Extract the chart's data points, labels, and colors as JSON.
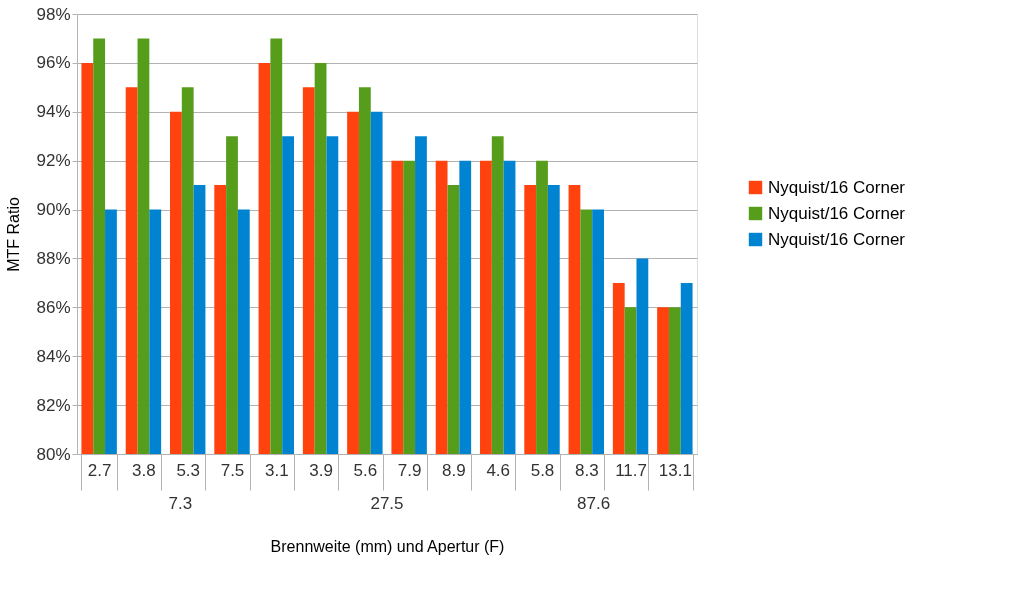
{
  "chart_data": {
    "type": "bar",
    "xlabel": "Brennweite (mm) und Apertur (F)",
    "ylabel": "MTF Ratio",
    "categories": [
      "2.7",
      "3.8",
      "5.3",
      "7.5",
      "3.1",
      "3.9",
      "5.6",
      "7.9",
      "8.9",
      "4.6",
      "5.8",
      "8.3",
      "11.7",
      "13.1"
    ],
    "series": [
      {
        "name": "Nyquist/16 Corner",
        "color": "#ff420e",
        "values": [
          96,
          95,
          94,
          91,
          96,
          95,
          94,
          92,
          92,
          92,
          91,
          91,
          87,
          86
        ]
      },
      {
        "name": "Nyquist/16 Corner",
        "color": "#579d1c",
        "values": [
          97,
          97,
          95,
          93,
          97,
          96,
          95,
          92,
          91,
          93,
          92,
          90,
          86,
          86
        ]
      },
      {
        "name": "Nyquist/16 Corner",
        "color": "#0084d1",
        "values": [
          90,
          90,
          91,
          90,
          93,
          93,
          94,
          93,
          92,
          92,
          91,
          90,
          88,
          87
        ]
      }
    ],
    "ylim": [
      80,
      98
    ],
    "yticks": [
      {
        "value": 80,
        "label": "80%"
      },
      {
        "value": 82,
        "label": "82%"
      },
      {
        "value": 84,
        "label": "84%"
      },
      {
        "value": 86,
        "label": "86%"
      },
      {
        "value": 88,
        "label": "88%"
      },
      {
        "value": 90,
        "label": "90%"
      },
      {
        "value": 92,
        "label": "92%"
      },
      {
        "value": 94,
        "label": "94%"
      },
      {
        "value": 96,
        "label": "96%"
      },
      {
        "value": 98,
        "label": "98%"
      }
    ],
    "annotations": [
      "7.3",
      "27.5",
      "87.6"
    ],
    "grid": "y",
    "legend": "right"
  }
}
